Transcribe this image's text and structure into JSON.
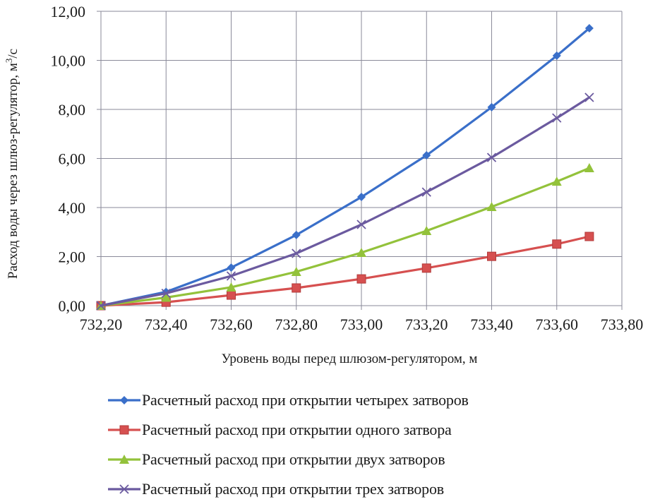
{
  "chart_data": {
    "type": "line",
    "title": "",
    "xlabel": "Уровень воды перед шлюзом-регулятором, м",
    "ylabel": "Расход воды через шлюз-регулятор, м³/с",
    "ylabel_parts": {
      "main": "Расход воды через шлюз-регулятор, м",
      "sup": "3",
      "tail": "/с"
    },
    "xlim": [
      732.2,
      733.8
    ],
    "ylim": [
      0,
      12
    ],
    "x_ticks": [
      "732,20",
      "732,40",
      "732,60",
      "732,80",
      "733,00",
      "733,20",
      "733,40",
      "733,60",
      "733,80"
    ],
    "y_ticks": [
      "0,00",
      "2,00",
      "4,00",
      "6,00",
      "8,00",
      "10,00",
      "12,00"
    ],
    "grid": true,
    "legend_position": "bottom",
    "x": [
      732.2,
      732.4,
      732.6,
      732.8,
      733.0,
      733.2,
      733.4,
      733.6,
      733.7
    ],
    "series": [
      {
        "name": "Расчетный расход при открытии четырех затворов",
        "color": "#3a6fc9",
        "marker": "diamond",
        "values": [
          0.0,
          0.56,
          1.55,
          2.88,
          4.43,
          6.13,
          8.09,
          10.19,
          11.31
        ]
      },
      {
        "name": "Расчетный расход при открытии одного затвора",
        "color": "#d65050",
        "marker": "square",
        "values": [
          0.0,
          0.14,
          0.43,
          0.72,
          1.09,
          1.53,
          2.01,
          2.51,
          2.82
        ]
      },
      {
        "name": "Расчетный расход при открытии двух затворов",
        "color": "#93c23b",
        "marker": "triangle",
        "values": [
          0.0,
          0.33,
          0.75,
          1.38,
          2.16,
          3.05,
          4.03,
          5.06,
          5.61
        ]
      },
      {
        "name": "Расчетный расход при открытии трех затворов",
        "color": "#6b5a9f",
        "marker": "x",
        "values": [
          0.0,
          0.5,
          1.21,
          2.13,
          3.31,
          4.63,
          6.04,
          7.65,
          8.49
        ]
      }
    ]
  },
  "colors": {
    "grid": "#8a8a9a",
    "axis": "#8a8a9a"
  }
}
